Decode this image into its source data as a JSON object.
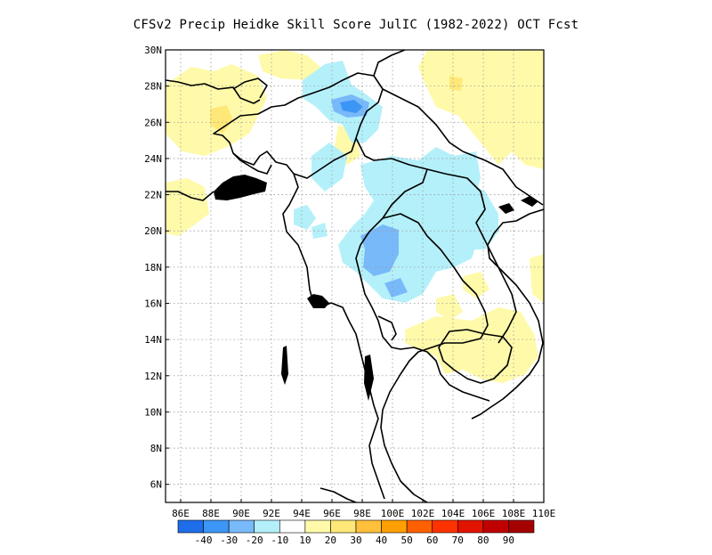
{
  "title": "CFSv2 Precip Heidke Skill Score JulIC (1982-2022) OCT Fcst",
  "map": {
    "lat_labels": [
      "30N",
      "28N",
      "26N",
      "24N",
      "22N",
      "20N",
      "18N",
      "16N",
      "14N",
      "12N",
      "10N",
      "8N",
      "6N"
    ],
    "lon_labels": [
      "86E",
      "88E",
      "90E",
      "92E",
      "94E",
      "96E",
      "98E",
      "100E",
      "102E",
      "104E",
      "106E",
      "108E",
      "110E"
    ],
    "gridlines": true
  },
  "legend": {
    "labels": [
      "-40",
      "-30",
      "-20",
      "-10",
      "10",
      "20",
      "30",
      "40",
      "50",
      "60",
      "70",
      "80",
      "90"
    ],
    "colors": [
      "#1e6eeb",
      "#3c96f5",
      "#78b9fa",
      "#b4f0fa",
      "#ffffff",
      "#fffaaa",
      "#ffe878",
      "#ffc03c",
      "#ffa000",
      "#ff6000",
      "#ff3200",
      "#e11400",
      "#c00000",
      "#a50000"
    ]
  },
  "colors": {
    "blue_weak": "#b4f0fa",
    "blue_mid": "#78b9fa",
    "blue_strong": "#3c96f5",
    "yellow_weak": "#fffaaa",
    "yellow_mid": "#ffe878",
    "orange": "#ffc03c"
  }
}
